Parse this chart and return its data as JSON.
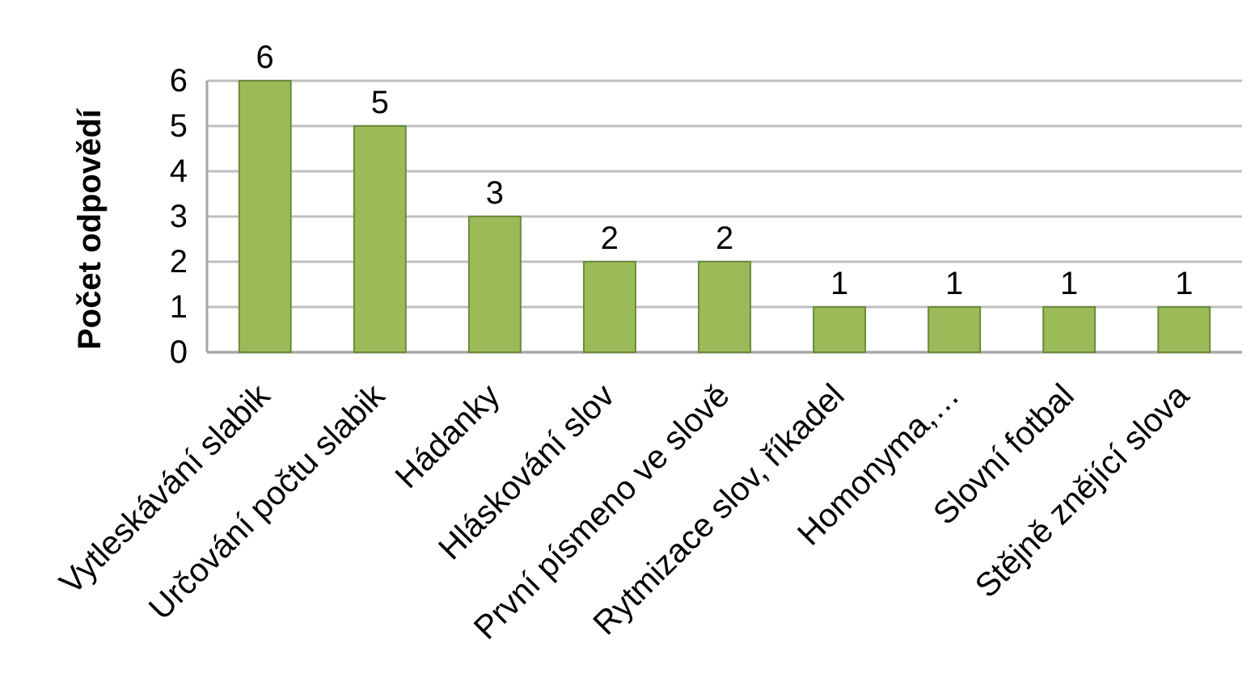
{
  "chart_data": {
    "type": "bar",
    "ylabel": "Počet odpovědí",
    "categories": [
      "Vytleskávání slabik",
      "Určování počtu slabik",
      "Hádanky",
      "Hláskování slov",
      "První písmeno ve slově",
      "Rytmizace slov, říkadel",
      "Homonyma,…",
      "Slovní fotbal",
      "Stějně znějící slova"
    ],
    "values": [
      6,
      5,
      3,
      2,
      2,
      1,
      1,
      1,
      1
    ],
    "color": "#9bbb59",
    "ylim": [
      0,
      6
    ],
    "yticks": [
      0,
      1,
      2,
      3,
      4,
      5,
      6
    ],
    "grid": "y",
    "data_labels": true
  }
}
